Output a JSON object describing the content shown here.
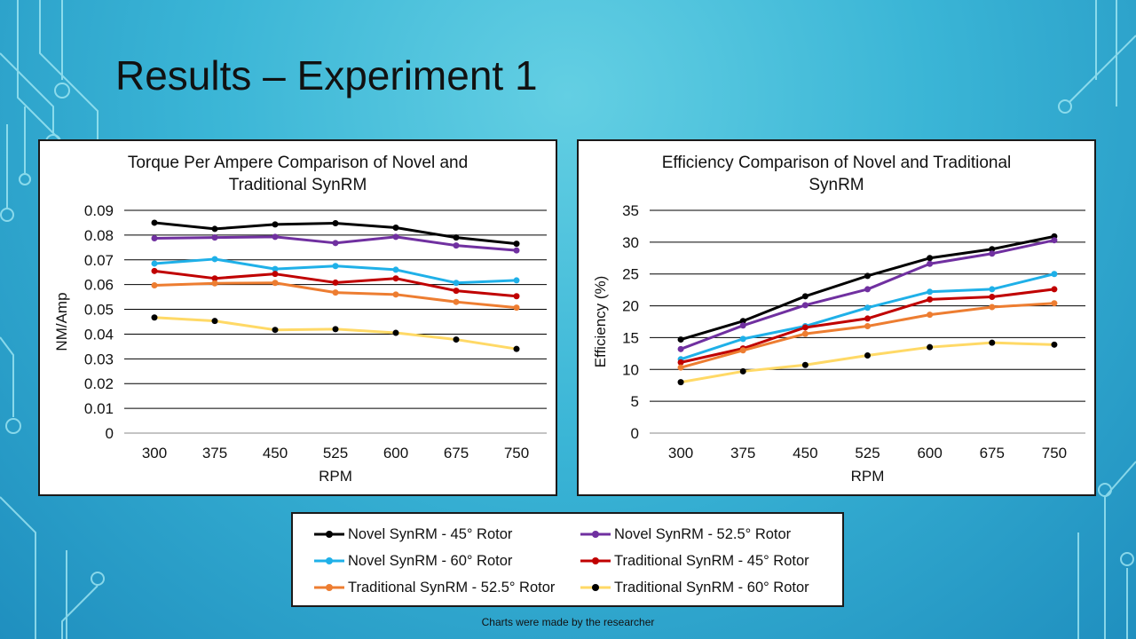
{
  "slide": {
    "title": "Results – Experiment 1",
    "footer": "Charts were made by the researcher"
  },
  "colors": {
    "background": "#3ab5d6",
    "panel": "#ffffff",
    "grid": "#000000"
  },
  "legend": {
    "items": [
      {
        "label": "Novel SynRM - 45° Rotor",
        "color": "#000000"
      },
      {
        "label": "Novel SynRM - 52.5° Rotor",
        "color": "#7030a0"
      },
      {
        "label": "Novel SynRM - 60° Rotor",
        "color": "#1fb0e8"
      },
      {
        "label": "Traditional SynRM - 45° Rotor",
        "color": "#c00000"
      },
      {
        "label": "Traditional SynRM - 52.5° Rotor",
        "color": "#ed7d31"
      },
      {
        "label": "Traditional SynRM - 60° Rotor",
        "color": "#ffd966"
      }
    ]
  },
  "chart_data": [
    {
      "type": "line",
      "title": "Torque Per Ampere Comparison of Novel and Traditional SynRM",
      "title_lines": [
        "Torque Per Ampere Comparison of Novel and",
        "Traditional SynRM"
      ],
      "xlabel": "RPM",
      "ylabel": "NM/Amp",
      "categories": [
        "300",
        "375",
        "450",
        "525",
        "600",
        "675",
        "750"
      ],
      "ylim": [
        0,
        0.09
      ],
      "yticks": [
        "0",
        "0.01",
        "0.02",
        "0.03",
        "0.04",
        "0.05",
        "0.06",
        "0.07",
        "0.08",
        "0.09"
      ],
      "grid": true,
      "series": [
        {
          "name": "Novel SynRM - 45° Rotor",
          "color": "#000000",
          "values": [
            0.085,
            0.0825,
            0.0843,
            0.0848,
            0.083,
            0.079,
            0.0765
          ]
        },
        {
          "name": "Novel SynRM - 52.5° Rotor",
          "color": "#7030a0",
          "values": [
            0.0787,
            0.079,
            0.0793,
            0.0768,
            0.0793,
            0.0758,
            0.0738
          ]
        },
        {
          "name": "Novel SynRM - 60° Rotor",
          "color": "#1fb0e8",
          "values": [
            0.0685,
            0.0703,
            0.0663,
            0.0675,
            0.066,
            0.0607,
            0.0617
          ]
        },
        {
          "name": "Traditional SynRM - 45° Rotor",
          "color": "#c00000",
          "values": [
            0.0655,
            0.0625,
            0.0643,
            0.0608,
            0.0625,
            0.0575,
            0.0553
          ]
        },
        {
          "name": "Traditional SynRM - 52.5° Rotor",
          "color": "#ed7d31",
          "values": [
            0.0597,
            0.0605,
            0.0607,
            0.0568,
            0.056,
            0.053,
            0.0507
          ]
        },
        {
          "name": "Traditional SynRM - 60° Rotor",
          "color": "#ffd966",
          "values": [
            0.0467,
            0.0453,
            0.0417,
            0.042,
            0.0405,
            0.0378,
            0.034
          ]
        }
      ]
    },
    {
      "type": "line",
      "title": "Efficiency Comparison of Novel and Traditional SynRM",
      "title_lines": [
        "Efficiency Comparison of Novel and Traditional",
        "SynRM"
      ],
      "xlabel": "RPM",
      "ylabel": "Efficiency (%)",
      "categories": [
        "300",
        "375",
        "450",
        "525",
        "600",
        "675",
        "750"
      ],
      "ylim": [
        0,
        35
      ],
      "yticks": [
        "0",
        "5",
        "10",
        "15",
        "20",
        "25",
        "30",
        "35"
      ],
      "grid": true,
      "series": [
        {
          "name": "Novel SynRM - 45° Rotor",
          "color": "#000000",
          "values": [
            14.7,
            17.6,
            21.5,
            24.7,
            27.5,
            28.9,
            30.9
          ]
        },
        {
          "name": "Novel SynRM - 52.5° Rotor",
          "color": "#7030a0",
          "values": [
            13.2,
            16.9,
            20.1,
            22.6,
            26.6,
            28.2,
            30.3
          ]
        },
        {
          "name": "Novel SynRM - 60° Rotor",
          "color": "#1fb0e8",
          "values": [
            11.6,
            14.8,
            16.8,
            19.7,
            22.2,
            22.6,
            25.0
          ]
        },
        {
          "name": "Traditional SynRM - 45° Rotor",
          "color": "#c00000",
          "values": [
            11.1,
            13.3,
            16.6,
            18.0,
            21.0,
            21.4,
            22.6
          ]
        },
        {
          "name": "Traditional SynRM - 52.5° Rotor",
          "color": "#ed7d31",
          "values": [
            10.3,
            13.0,
            15.6,
            16.8,
            18.6,
            19.8,
            20.4
          ]
        },
        {
          "name": "Traditional SynRM - 60° Rotor",
          "color": "#ffd966",
          "values": [
            8.0,
            9.7,
            10.7,
            12.2,
            13.5,
            14.2,
            13.9
          ]
        }
      ]
    }
  ]
}
